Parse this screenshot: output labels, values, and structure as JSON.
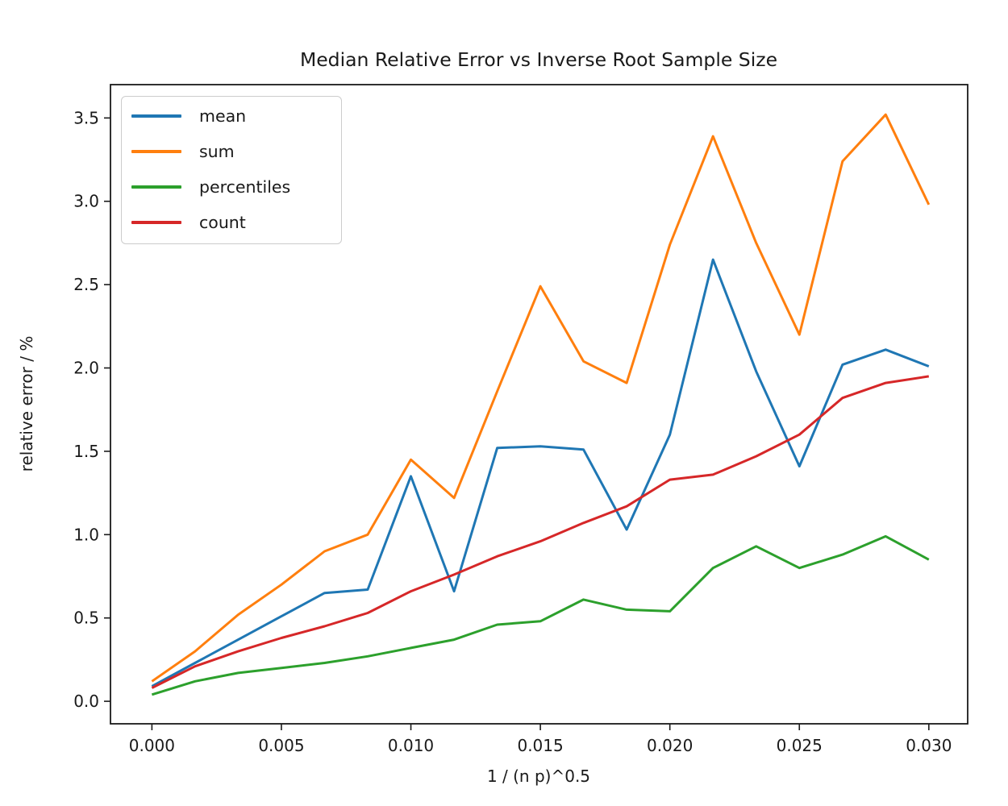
{
  "chart_data": {
    "type": "line",
    "title": "Median Relative Error vs Inverse Root Sample Size",
    "xlabel": "1 / (n p)^0.5",
    "ylabel": "relative error / %",
    "x": [
      0.0,
      0.001667,
      0.003333,
      0.005,
      0.006667,
      0.008333,
      0.01,
      0.011667,
      0.013333,
      0.015,
      0.016667,
      0.018333,
      0.02,
      0.021667,
      0.023333,
      0.025,
      0.026667,
      0.028333,
      0.03
    ],
    "series": [
      {
        "name": "mean",
        "color": "#1f77b4",
        "values": [
          0.09,
          0.23,
          0.37,
          0.51,
          0.65,
          0.67,
          1.35,
          0.66,
          1.52,
          1.53,
          1.51,
          1.03,
          1.6,
          2.65,
          1.98,
          1.41,
          2.02,
          2.11,
          2.01
        ]
      },
      {
        "name": "sum",
        "color": "#ff7f0e",
        "values": [
          0.12,
          0.3,
          0.52,
          0.7,
          0.9,
          1.0,
          1.45,
          1.22,
          1.86,
          2.49,
          2.04,
          1.91,
          2.74,
          3.39,
          2.75,
          2.2,
          3.24,
          3.52,
          2.98
        ]
      },
      {
        "name": "percentiles",
        "color": "#2ca02c",
        "values": [
          0.04,
          0.12,
          0.17,
          0.2,
          0.23,
          0.27,
          0.32,
          0.37,
          0.46,
          0.48,
          0.61,
          0.55,
          0.54,
          0.8,
          0.93,
          0.8,
          0.88,
          0.99,
          0.85
        ]
      },
      {
        "name": "count",
        "color": "#d62728",
        "values": [
          0.08,
          0.21,
          0.3,
          0.38,
          0.45,
          0.53,
          0.66,
          0.76,
          0.87,
          0.96,
          1.07,
          1.17,
          1.33,
          1.36,
          1.47,
          1.6,
          1.82,
          1.91,
          1.95
        ]
      }
    ],
    "xticks": [
      0.0,
      0.005,
      0.01,
      0.015,
      0.02,
      0.025,
      0.03
    ],
    "xtick_labels": [
      "0.000",
      "0.005",
      "0.010",
      "0.015",
      "0.020",
      "0.025",
      "0.030"
    ],
    "yticks": [
      0.0,
      0.5,
      1.0,
      1.5,
      2.0,
      2.5,
      3.0,
      3.5
    ],
    "ytick_labels": [
      "0.0",
      "0.5",
      "1.0",
      "1.5",
      "2.0",
      "2.5",
      "3.0",
      "3.5"
    ],
    "xlim": [
      -0.0016,
      0.0315
    ],
    "ylim": [
      -0.135,
      3.7
    ],
    "grid": false,
    "legend_position": "upper left",
    "legend_entries": [
      "mean",
      "sum",
      "percentiles",
      "count"
    ]
  }
}
